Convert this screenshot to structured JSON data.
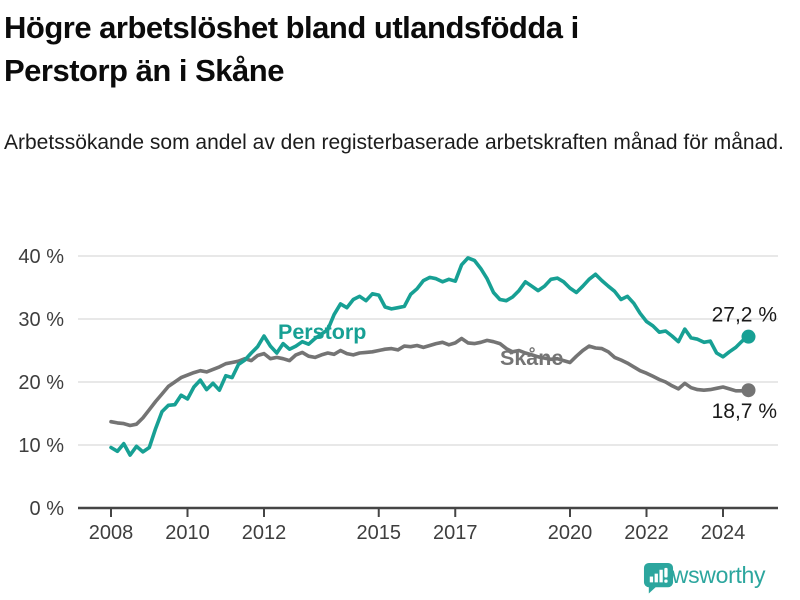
{
  "header": {
    "title_line1": "Högre arbetslöshet bland utlandsfödda i",
    "title_line2": "Perstorp än i Skåne",
    "subtitle": "Arbetssökande som andel av den registerbaserade arbetskraften månad för månad."
  },
  "footer": {
    "brand": "Newsworthy",
    "brand_color": "#2ca69e",
    "brand_icon": "speech-bubble-bar-chart-exclamation"
  },
  "colors": {
    "accent_teal": "#17a094",
    "series_gray": "#747474",
    "grid": "#d9d9d9",
    "axis": "#454545",
    "tick_text": "#3e3e3e",
    "value_label_text": "#1a1a1a"
  },
  "chart_data": {
    "type": "line",
    "title": "Högre arbetslöshet bland utlandsfödda i Perstorp än i Skåne",
    "subtitle": "Arbetssökande som andel av den registerbaserade arbetskraften månad för månad.",
    "unit": "%",
    "grid": "horizontal",
    "legend_position": "inline-labels",
    "x_start": 2008.0,
    "x_step_years": 0.166667,
    "xlim": [
      2007.1,
      2025.5
    ],
    "ylim": [
      0,
      42
    ],
    "x_tick_values": [
      2008,
      2010,
      2012,
      2015,
      2017,
      2020,
      2022,
      2024
    ],
    "x_tick_labels": [
      "2008",
      "2010",
      "2012",
      "2015",
      "2017",
      "2020",
      "2022",
      "2024"
    ],
    "y_tick_values": [
      0,
      10,
      20,
      30,
      40
    ],
    "y_tick_labels": [
      "0 %",
      "10 %",
      "20 %",
      "30 %",
      "40 %"
    ],
    "series": [
      {
        "name": "Perstorp",
        "color": "#17a094",
        "end_label": "27,2 %",
        "last_value": 27.2,
        "values": [
          9.6,
          9.0,
          10.2,
          8.4,
          9.8,
          8.9,
          9.6,
          12.6,
          15.3,
          16.3,
          16.4,
          17.9,
          17.3,
          19.2,
          20.3,
          18.8,
          19.8,
          18.7,
          21.0,
          20.7,
          22.8,
          23.5,
          24.6,
          25.6,
          27.3,
          25.7,
          24.6,
          26.1,
          25.2,
          25.7,
          26.4,
          26.0,
          26.9,
          27.6,
          28.3,
          30.7,
          32.4,
          31.8,
          33.1,
          33.6,
          32.9,
          34.0,
          33.8,
          31.9,
          31.6,
          31.8,
          32.0,
          33.9,
          34.8,
          36.1,
          36.6,
          36.4,
          35.9,
          36.3,
          36.0,
          38.6,
          39.7,
          39.3,
          38.0,
          36.4,
          34.2,
          33.1,
          32.9,
          33.5,
          34.5,
          35.9,
          35.2,
          34.5,
          35.2,
          36.3,
          36.5,
          35.9,
          34.9,
          34.2,
          35.2,
          36.3,
          37.1,
          36.1,
          35.2,
          34.4,
          33.1,
          33.6,
          32.5,
          30.9,
          29.6,
          28.9,
          27.9,
          28.1,
          27.3,
          26.4,
          28.4,
          27.0,
          26.8,
          26.3,
          26.5,
          24.6,
          24.0,
          24.8,
          25.5,
          26.5,
          27.2
        ]
      },
      {
        "name": "Skåne",
        "color": "#747474",
        "end_label": "18,7 %",
        "last_value": 18.7,
        "values": [
          13.7,
          13.5,
          13.4,
          13.1,
          13.3,
          14.3,
          15.6,
          16.9,
          18.1,
          19.3,
          20.0,
          20.7,
          21.1,
          21.5,
          21.8,
          21.6,
          22.0,
          22.4,
          22.9,
          23.1,
          23.3,
          23.7,
          23.4,
          24.2,
          24.5,
          23.7,
          23.9,
          23.7,
          23.4,
          24.3,
          24.7,
          24.1,
          23.9,
          24.3,
          24.6,
          24.4,
          25.0,
          24.5,
          24.3,
          24.6,
          24.7,
          24.8,
          25.0,
          25.2,
          25.3,
          25.1,
          25.7,
          25.6,
          25.8,
          25.5,
          25.8,
          26.1,
          26.3,
          25.9,
          26.2,
          26.9,
          26.2,
          26.1,
          26.3,
          26.6,
          26.4,
          26.1,
          25.3,
          24.8,
          25.0,
          24.6,
          24.3,
          24.0,
          23.8,
          23.6,
          23.7,
          23.4,
          23.1,
          24.1,
          25.0,
          25.7,
          25.4,
          25.3,
          24.8,
          23.9,
          23.5,
          23.0,
          22.4,
          21.8,
          21.4,
          20.9,
          20.4,
          20.0,
          19.4,
          18.9,
          19.8,
          19.1,
          18.8,
          18.7,
          18.8,
          19.0,
          19.2,
          18.9,
          18.6,
          18.6,
          18.7
        ]
      }
    ]
  }
}
